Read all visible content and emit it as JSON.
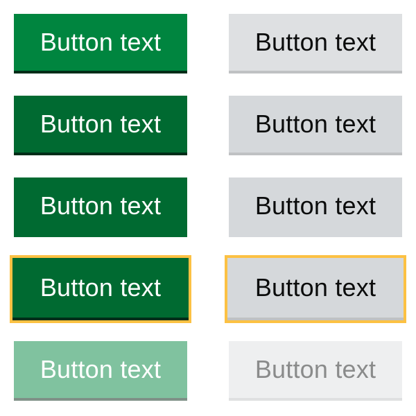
{
  "buttons": {
    "primary": {
      "default_label": "Button text",
      "hover_label": "Button text",
      "active_label": "Button text",
      "focus_label": "Button text",
      "disabled_label": "Button text"
    },
    "secondary": {
      "default_label": "Button text",
      "hover_label": "Button text",
      "active_label": "Button text",
      "focus_label": "Button text",
      "disabled_label": "Button text"
    }
  },
  "colors": {
    "primary_bg": "#00853f",
    "primary_hover_bg": "#006a31",
    "primary_shadow": "#002d18",
    "primary_disabled_bg": "#80c29f",
    "secondary_bg": "#dee0e2",
    "secondary_hover_bg": "#d5d8db",
    "secondary_shadow": "#bfc1c3",
    "secondary_disabled_bg": "#eeeff0",
    "focus_ring": "#fcc143"
  }
}
